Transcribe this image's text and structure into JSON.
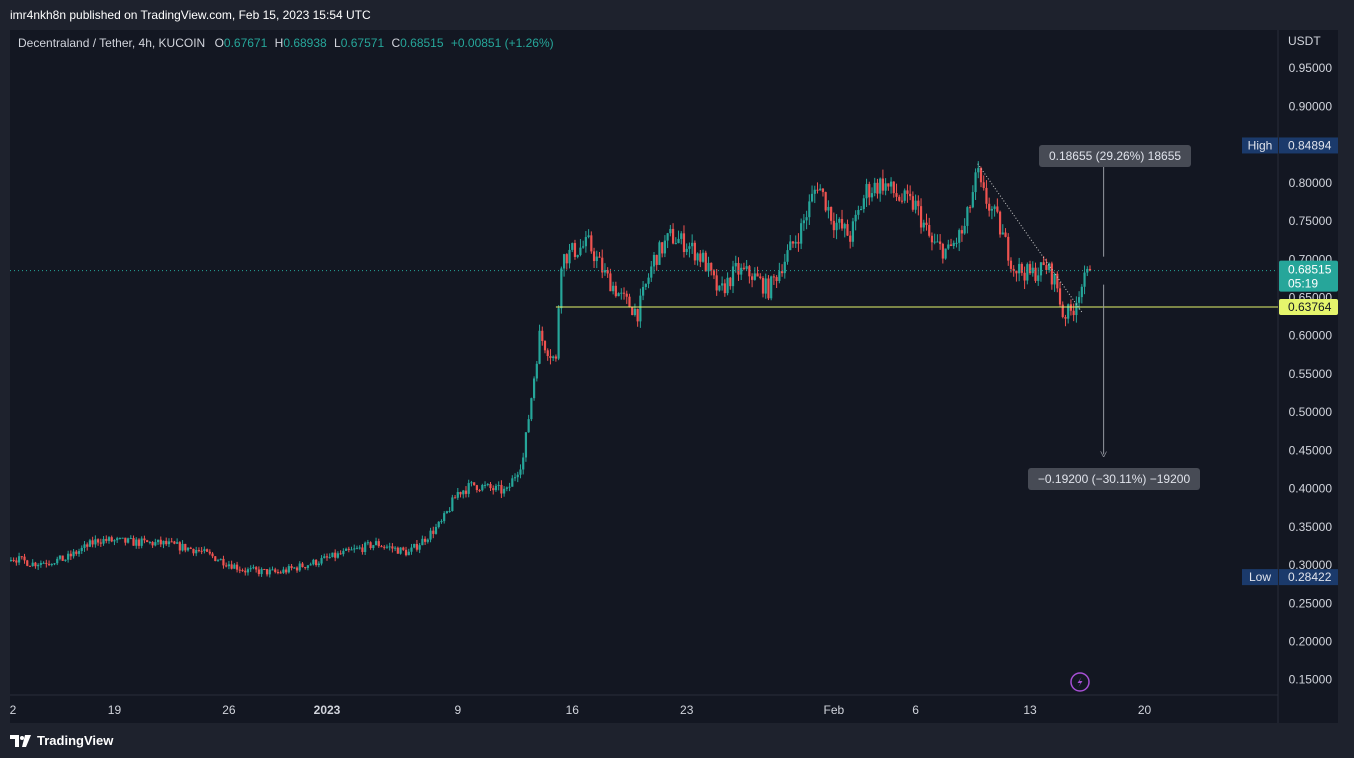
{
  "header": {
    "published": "imr4nkh8n published on TradingView.com, Feb 15, 2023 15:54 UTC"
  },
  "legend": {
    "symbol": "Decentraland / Tether, 4h, KUCOIN",
    "open_label": "O",
    "open": "0.67671",
    "high_label": "H",
    "high": "0.68938",
    "low_label": "L",
    "low": "0.67571",
    "close_label": "C",
    "close": "0.68515",
    "change": "+0.00851 (+1.26%)"
  },
  "price_axis": {
    "currency": "USDT"
  },
  "footer": {
    "logo_text": "TradingView"
  },
  "colors": {
    "up": "#26a69a",
    "down": "#ef5350",
    "background": "#131722",
    "support": "#e5f56c",
    "badge": "#1b3a6b"
  },
  "chart_data": {
    "type": "candlestick",
    "symbol": "Decentraland / Tether",
    "interval": "4h",
    "exchange": "KUCOIN",
    "ylim": [
      0.13,
      1.0
    ],
    "yticks": [
      0.15,
      0.2,
      0.25,
      0.3,
      0.35,
      0.4,
      0.45,
      0.5,
      0.55,
      0.6,
      0.65,
      0.7,
      0.75,
      0.8,
      0.85,
      0.9,
      0.95
    ],
    "xticks": [
      {
        "label": "2",
        "day": -29
      },
      {
        "label": "19",
        "day": -13
      },
      {
        "label": "26",
        "day": -6
      },
      {
        "label": "2023",
        "day": 0,
        "bold": true
      },
      {
        "label": "9",
        "day": 8
      },
      {
        "label": "16",
        "day": 15
      },
      {
        "label": "23",
        "day": 22
      },
      {
        "label": "Feb",
        "day": 31
      },
      {
        "label": "6",
        "day": 36
      },
      {
        "label": "13",
        "day": 43
      },
      {
        "label": "20",
        "day": 50
      }
    ],
    "trend": [
      [
        -30,
        0.38
      ],
      [
        -28,
        0.395
      ],
      [
        -26,
        0.38
      ],
      [
        -24,
        0.33
      ],
      [
        -21,
        0.32
      ],
      [
        -18,
        0.302
      ],
      [
        -16,
        0.308
      ],
      [
        -14,
        0.333
      ],
      [
        -12,
        0.33
      ],
      [
        -10,
        0.328
      ],
      [
        -8,
        0.32
      ],
      [
        -5,
        0.293
      ],
      [
        -3,
        0.29
      ],
      [
        -1,
        0.302
      ],
      [
        1,
        0.315
      ],
      [
        3,
        0.328
      ],
      [
        5,
        0.316
      ],
      [
        6,
        0.335
      ],
      [
        7,
        0.355
      ],
      [
        8,
        0.395
      ],
      [
        9,
        0.405
      ],
      [
        10,
        0.4
      ],
      [
        11,
        0.396
      ],
      [
        12,
        0.44
      ],
      [
        12.5,
        0.52
      ],
      [
        13,
        0.6
      ],
      [
        14,
        0.566
      ],
      [
        14.3,
        0.7
      ],
      [
        15,
        0.71
      ],
      [
        16,
        0.72
      ],
      [
        17,
        0.68
      ],
      [
        18,
        0.65
      ],
      [
        19,
        0.63
      ],
      [
        20,
        0.7
      ],
      [
        21,
        0.73
      ],
      [
        22,
        0.72
      ],
      [
        23,
        0.7
      ],
      [
        24,
        0.655
      ],
      [
        25,
        0.685
      ],
      [
        26,
        0.68
      ],
      [
        27,
        0.66
      ],
      [
        28,
        0.7
      ],
      [
        29,
        0.74
      ],
      [
        30,
        0.8
      ],
      [
        31,
        0.75
      ],
      [
        32,
        0.73
      ],
      [
        33,
        0.79
      ],
      [
        34,
        0.8
      ],
      [
        35,
        0.78
      ],
      [
        36,
        0.77
      ],
      [
        37,
        0.72
      ],
      [
        38,
        0.71
      ],
      [
        39,
        0.74
      ],
      [
        39.8,
        0.815
      ],
      [
        40,
        0.79
      ],
      [
        41,
        0.75
      ],
      [
        42,
        0.69
      ],
      [
        43,
        0.68
      ],
      [
        44,
        0.69
      ],
      [
        44.6,
        0.67
      ],
      [
        45,
        0.628
      ],
      [
        45.6,
        0.632
      ],
      [
        46,
        0.66
      ],
      [
        46.7,
        0.685
      ]
    ],
    "last_close": 0.68515,
    "countdown": "05:19",
    "high": {
      "label": "High",
      "value": "0.84894",
      "price": 0.84894
    },
    "low": {
      "label": "Low",
      "value": "0.28422",
      "price": 0.28422
    },
    "support_line": {
      "price": 0.63764,
      "label": "0.63764",
      "from_day": 14
    },
    "trendline": {
      "from": [
        39.8,
        0.825
      ],
      "to": [
        46.2,
        0.63
      ]
    },
    "measure": {
      "up_label": "0.18655 (29.26%) 18655",
      "down_label": "−0.19200 (−30.11%) −19200",
      "day": 47.5,
      "top": 0.825,
      "bottom": 0.445
    }
  }
}
